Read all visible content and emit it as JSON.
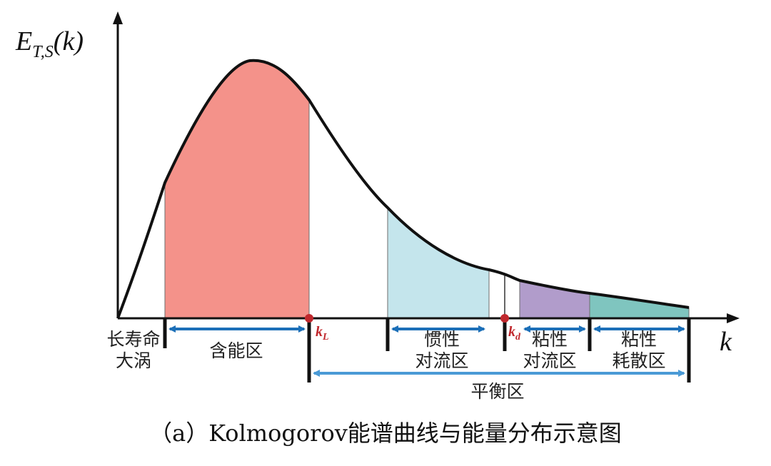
{
  "y_axis": {
    "symbol": "E",
    "subscript": "T,S",
    "argument": "(k)"
  },
  "x_axis": {
    "symbol": "k"
  },
  "markers": {
    "kL": {
      "symbol": "k",
      "subscript": "L"
    },
    "kd": {
      "symbol": "k",
      "subscript": "d"
    }
  },
  "regions": {
    "large_eddies": {
      "line1": "长寿命",
      "line2": "大涡"
    },
    "energy_containing": {
      "label": "含能区"
    },
    "inertial": {
      "line1": "惯性",
      "line2": "对流区"
    },
    "viscous_convective": {
      "line1": "粘性",
      "line2": "对流区"
    },
    "viscous_dissipative": {
      "line1": "粘性",
      "line2": "耗散区"
    },
    "equilibrium": {
      "label": "平衡区"
    }
  },
  "colors": {
    "energy_fill": "#f4928a",
    "inertial_fill": "#c4e5ec",
    "viscous_convective_fill": "#b19ccb",
    "viscous_dissipative_fill": "#7fc5bf",
    "arrow_blue": "#1c6fb8",
    "arrow_light_blue": "#4a9ad6",
    "marker_red": "#c0282d"
  },
  "caption": "（a）Kolmogorov能谱曲线与能量分布示意图"
}
